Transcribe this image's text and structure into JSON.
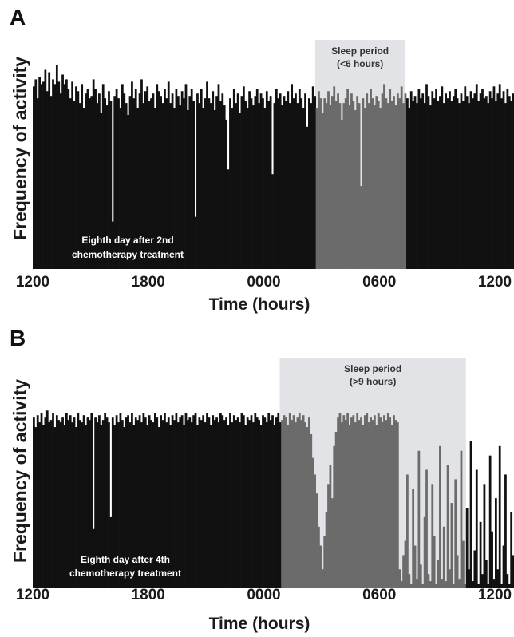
{
  "chart_data": [
    {
      "panel": "A",
      "type": "bar",
      "ylabel": "Frequency of activity",
      "xlabel": "Time (hours)",
      "xticks": [
        "1200",
        "1800",
        "0000",
        "0600",
        "1200"
      ],
      "xlim": [
        0,
        24
      ],
      "ylim": [
        0,
        100
      ],
      "x_unit": "hours after 1200",
      "shade": {
        "start": 14.67,
        "end": 19.33,
        "label_lines": [
          "Sleep period",
          "(<6 hours)"
        ],
        "color": "#e2e3e6"
      },
      "annotation_lines": [
        "Eighth day after 2nd",
        "chemotherapy treatment"
      ],
      "bar_color": "#111111",
      "sleep_bar_color": "#6b6b6b",
      "series": [
        {
          "x_start": 0,
          "x_step": 0.1,
          "values": [
            77,
            80,
            72,
            81,
            78,
            79,
            84,
            75,
            83,
            73,
            80,
            78,
            86,
            79,
            74,
            82,
            78,
            80,
            76,
            72,
            79,
            71,
            77,
            75,
            70,
            78,
            68,
            74,
            76,
            72,
            73,
            80,
            76,
            70,
            74,
            66,
            78,
            72,
            69,
            75,
            71,
            20,
            73,
            76,
            72,
            68,
            78,
            74,
            70,
            65,
            73,
            79,
            72,
            76,
            68,
            74,
            80,
            70,
            75,
            77,
            71,
            72,
            74,
            68,
            78,
            75,
            73,
            70,
            76,
            72,
            79,
            70,
            74,
            68,
            76,
            73,
            69,
            75,
            72,
            78,
            67,
            73,
            76,
            71,
            22,
            74,
            70,
            76,
            68,
            72,
            79,
            72,
            70,
            75,
            67,
            73,
            78,
            71,
            74,
            69,
            63,
            42,
            72,
            68,
            76,
            70,
            74,
            66,
            73,
            77,
            71,
            68,
            75,
            72,
            69,
            73,
            76,
            70,
            74,
            72,
            68,
            75,
            71,
            73,
            40,
            70,
            76,
            72,
            74,
            69,
            73,
            71,
            75,
            70,
            78,
            72,
            74,
            70,
            76,
            72,
            68,
            74,
            60,
            72,
            70,
            77,
            73,
            68,
            75,
            72,
            66,
            72,
            70,
            75,
            69,
            73,
            77,
            71,
            74,
            70,
            63,
            70,
            72,
            76,
            69,
            74,
            71,
            67,
            73,
            70,
            35,
            72,
            68,
            74,
            70,
            76,
            72,
            69,
            73,
            71,
            68,
            74,
            78,
            72,
            70,
            76,
            71,
            73,
            69,
            74,
            72,
            77,
            70,
            74,
            72,
            68,
            75,
            71,
            73,
            70,
            76,
            72,
            74,
            70,
            78,
            73,
            69,
            75,
            72,
            76,
            71,
            73,
            77,
            70,
            74,
            72,
            75,
            71,
            73,
            76,
            72,
            70,
            74,
            71,
            77,
            73,
            70,
            75,
            72,
            74,
            78,
            71,
            74,
            76,
            72,
            73,
            70,
            75,
            72,
            77,
            71,
            74,
            78,
            72,
            75,
            70,
            76,
            73,
            71,
            74,
            72,
            75,
            70,
            77,
            73,
            74,
            76,
            71,
            78,
            73,
            72,
            75,
            70,
            74,
            77,
            72,
            76,
            73,
            71,
            75,
            72,
            74,
            78,
            71,
            73,
            76,
            72,
            75,
            74,
            71,
            77,
            73,
            75,
            72,
            76,
            74,
            70,
            73,
            75,
            71,
            10,
            44,
            3,
            58,
            14,
            2,
            36,
            5,
            65,
            18,
            2,
            50,
            12,
            4,
            62,
            22,
            3,
            48,
            8,
            2,
            70,
            16,
            4,
            45,
            2,
            10,
            56,
            6,
            2,
            68,
            20,
            3,
            42,
            8,
            60,
            4,
            2,
            30,
            12,
            66,
            3,
            24,
            58,
            2,
            8,
            46,
            4,
            16,
            2,
            62,
            5,
            2,
            38,
            10,
            3,
            80,
            76,
            78,
            73,
            81,
            75,
            79,
            72,
            77,
            80,
            74,
            78,
            45,
            75,
            80,
            73,
            77,
            79,
            74,
            76,
            71,
            78,
            35,
            75,
            79,
            73,
            77,
            80,
            74,
            78,
            76,
            72,
            79,
            75,
            81,
            73,
            77,
            74,
            79,
            76,
            72,
            78,
            75,
            80,
            74
          ]
        }
      ]
    },
    {
      "panel": "B",
      "type": "bar",
      "ylabel": "Frequency of activity",
      "xlabel": "Time (hours)",
      "xticks": [
        "1200",
        "1800",
        "0000",
        "0600",
        "1200"
      ],
      "xlim": [
        0,
        24
      ],
      "ylim": [
        0,
        100
      ],
      "x_unit": "hours after 1200",
      "shade": {
        "start": 12.83,
        "end": 22.5,
        "label_lines": [
          "Sleep period",
          "(>9 hours)"
        ],
        "color": "#e2e3e6"
      },
      "annotation_lines": [
        "Eighth day after 4th",
        "chemotherapy treatment"
      ],
      "bar_color": "#111111",
      "sleep_bar_color": "#6b6b6b",
      "series": [
        {
          "x_start": 0,
          "x_step": 0.1,
          "values": [
            72,
            68,
            73,
            70,
            74,
            69,
            72,
            75,
            70,
            71,
            74,
            68,
            73,
            71,
            70,
            72,
            69,
            74,
            71,
            73,
            70,
            72,
            68,
            74,
            71,
            70,
            73,
            69,
            72,
            71,
            74,
            25,
            72,
            70,
            73,
            69,
            71,
            74,
            72,
            70,
            30,
            72,
            69,
            73,
            70,
            74,
            71,
            68,
            72,
            73,
            70,
            74,
            69,
            72,
            71,
            73,
            70,
            74,
            72,
            69,
            73,
            71,
            70,
            74,
            72,
            68,
            73,
            71,
            74,
            70,
            72,
            69,
            73,
            71,
            74,
            70,
            72,
            73,
            69,
            74,
            71,
            72,
            70,
            73,
            74,
            69,
            72,
            71,
            73,
            70,
            74,
            72,
            69,
            73,
            71,
            72,
            70,
            74,
            73,
            71,
            72,
            69,
            74,
            70,
            73,
            71,
            72,
            70,
            74,
            73,
            69,
            72,
            71,
            73,
            70,
            74,
            72,
            71,
            69,
            73,
            72,
            70,
            74,
            71,
            73,
            69,
            72,
            74,
            70,
            71,
            73,
            72,
            69,
            74,
            71,
            73,
            70,
            72,
            74,
            71,
            73,
            70,
            68,
            72,
            65,
            55,
            48,
            40,
            26,
            18,
            8,
            22,
            32,
            44,
            52,
            38,
            60,
            66,
            72,
            74,
            70,
            73,
            71,
            74,
            69,
            72,
            73,
            70,
            74,
            71,
            72,
            69,
            73,
            74,
            70,
            72,
            71,
            73,
            69,
            74,
            72,
            70,
            73,
            71,
            74,
            72,
            69,
            73,
            71,
            70,
            8,
            3,
            14,
            20,
            48,
            6,
            2,
            42,
            18,
            4,
            58,
            10,
            2,
            30,
            50,
            6,
            3,
            44,
            22,
            2,
            12,
            60,
            4,
            26,
            3,
            52,
            8,
            36,
            2,
            46,
            14,
            4,
            58,
            20,
            2,
            34,
            8,
            62,
            3,
            16,
            50,
            2,
            28,
            6,
            44,
            12,
            2,
            56,
            24,
            4,
            38,
            8,
            60,
            2,
            18,
            48,
            6,
            2,
            32,
            14,
            54,
            3,
            22,
            42,
            6,
            2,
            58,
            10,
            30,
            4,
            46,
            16,
            2,
            64,
            8,
            26,
            2,
            40,
            12,
            52,
            3,
            20,
            56,
            6,
            34,
            2,
            48,
            14,
            4,
            60,
            22,
            2,
            36,
            8,
            50,
            4,
            62,
            16,
            3,
            72,
            70,
            75,
            68,
            74,
            71,
            73,
            69,
            76,
            72,
            74,
            70,
            20,
            72,
            75,
            71,
            73,
            70,
            74,
            72
          ]
        }
      ]
    }
  ]
}
